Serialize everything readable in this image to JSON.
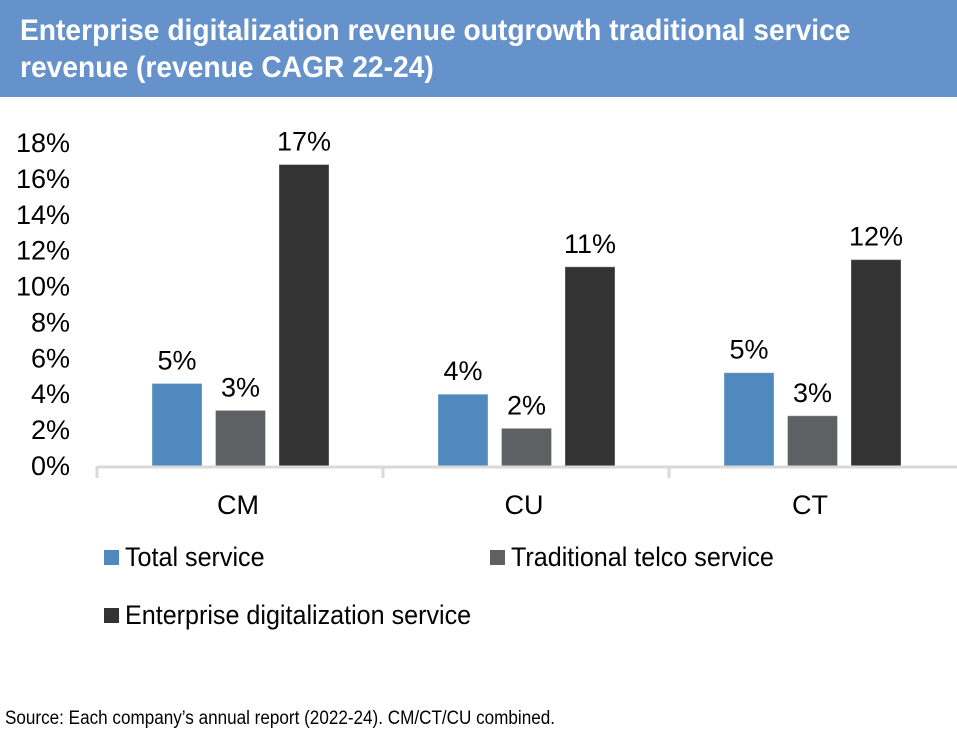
{
  "header": {
    "title": "Enterprise digitalization revenue outgrowth traditional service revenue (revenue CAGR 22-24)",
    "background_color": "#6592CB"
  },
  "chart_data": {
    "type": "bar",
    "title": "Enterprise digitalization revenue outgrowth traditional service revenue (revenue CAGR 22-24)",
    "xlabel": "",
    "ylabel": "",
    "categories": [
      "CM",
      "CU",
      "CT"
    ],
    "series": [
      {
        "name": "Total service",
        "color": "#4F89BE",
        "values": [
          4.6,
          4.0,
          5.2
        ],
        "labels": [
          "5%",
          "4%",
          "5%"
        ]
      },
      {
        "name": "Traditional telco service",
        "color": "#5F6064",
        "values": [
          3.1,
          2.1,
          2.8
        ],
        "labels": [
          "3%",
          "2%",
          "3%"
        ]
      },
      {
        "name": "Enterprise digitalization service",
        "color": "#333333",
        "values": [
          16.8,
          11.1,
          11.5
        ],
        "labels": [
          "17%",
          "11%",
          "12%"
        ]
      }
    ],
    "ylim": [
      0,
      18
    ],
    "yticks": [
      0,
      2,
      4,
      6,
      8,
      10,
      12,
      14,
      16,
      18
    ],
    "ytick_labels": [
      "0%",
      "2%",
      "4%",
      "6%",
      "8%",
      "10%",
      "12%",
      "14%",
      "16%",
      "18%"
    ],
    "grid": false,
    "legend_position": "bottom"
  },
  "legend": {
    "items": [
      {
        "label": "Total service",
        "color": "#4F89BE"
      },
      {
        "label": "Traditional telco service",
        "color": "#5F6064"
      },
      {
        "label": "Enterprise digitalization service",
        "color": "#333333"
      }
    ]
  },
  "footer": {
    "source": "Source: Each company’s annual report (2022-24). CM/CT/CU combined."
  }
}
